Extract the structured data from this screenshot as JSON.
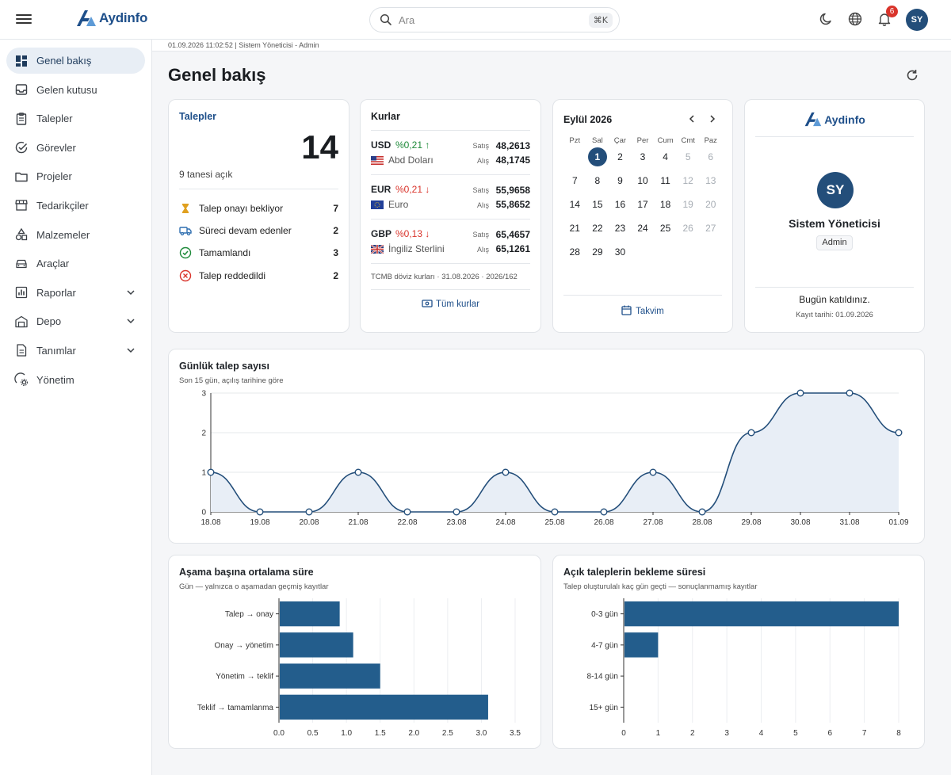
{
  "brand": {
    "name": "Aydinfo",
    "color": "#1e4f8a"
  },
  "search": {
    "placeholder": "Ara",
    "shortcut": "⌘K"
  },
  "header": {
    "notification_count": "6",
    "avatar_initials": "SY"
  },
  "sidebar": {
    "items": [
      {
        "label": "Genel bakış",
        "icon": "dashboard-icon",
        "active": true
      },
      {
        "label": "Gelen kutusu",
        "icon": "inbox-icon"
      },
      {
        "label": "Talepler",
        "icon": "clipboard-icon"
      },
      {
        "label": "Görevler",
        "icon": "check-circle-icon"
      },
      {
        "label": "Projeler",
        "icon": "folder-icon"
      },
      {
        "label": "Tedarikçiler",
        "icon": "store-icon"
      },
      {
        "label": "Malzemeler",
        "icon": "shapes-icon"
      },
      {
        "label": "Araçlar",
        "icon": "car-icon"
      },
      {
        "label": "Raporlar",
        "icon": "bar-chart-icon",
        "expandable": true
      },
      {
        "label": "Depo",
        "icon": "warehouse-icon",
        "expandable": true
      },
      {
        "label": "Tanımlar",
        "icon": "document-icon",
        "expandable": true
      },
      {
        "label": "Yönetim",
        "icon": "admin-gear-icon"
      }
    ]
  },
  "infobar": {
    "text": "01.09.2026 11:02:52 | Sistem Yöneticisi - Admin"
  },
  "page": {
    "title": "Genel bakış"
  },
  "talepler": {
    "title": "Talepler",
    "total": "14",
    "open_text": "9 tanesi açık",
    "statuses": [
      {
        "label": "Talep onayı bekliyor",
        "count": "7",
        "icon": "hourglass-icon",
        "color": "#e0a020"
      },
      {
        "label": "Süreci devam edenler",
        "count": "2",
        "icon": "truck-icon",
        "color": "#2f6fb0"
      },
      {
        "label": "Tamamlandı",
        "count": "3",
        "icon": "check-circle-icon",
        "color": "#1e8a3a"
      },
      {
        "label": "Talep reddedildi",
        "count": "2",
        "icon": "x-circle-icon",
        "color": "#d9342b"
      }
    ]
  },
  "kurlar": {
    "title": "Kurlar",
    "sell_label": "Satış",
    "buy_label": "Alış",
    "rates": [
      {
        "code": "USD",
        "change": "%0,21",
        "direction": "up",
        "name": "Abd Doları",
        "flag": "us-flag-icon",
        "sell": "48,2613",
        "buy": "48,1745"
      },
      {
        "code": "EUR",
        "change": "%0,21",
        "direction": "down",
        "name": "Euro",
        "flag": "eu-flag-icon",
        "sell": "55,9658",
        "buy": "55,8652"
      },
      {
        "code": "GBP",
        "change": "%0,13",
        "direction": "down",
        "name": "İngiliz Sterlini",
        "flag": "uk-flag-icon",
        "sell": "65,4657",
        "buy": "65,1261"
      }
    ],
    "source": "TCMB döviz kurları · 31.08.2026 · 2026/162",
    "link": "Tüm kurlar"
  },
  "calendar": {
    "title": "Eylül 2026",
    "weekdays": [
      "Pzt",
      "Sal",
      "Çar",
      "Per",
      "Cum",
      "Cmt",
      "Paz"
    ],
    "weeks": [
      [
        "",
        "1",
        "2",
        "3",
        "4",
        "5",
        "6"
      ],
      [
        "7",
        "8",
        "9",
        "10",
        "11",
        "12",
        "13"
      ],
      [
        "14",
        "15",
        "16",
        "17",
        "18",
        "19",
        "20"
      ],
      [
        "21",
        "22",
        "23",
        "24",
        "25",
        "26",
        "27"
      ],
      [
        "28",
        "29",
        "30",
        "",
        "",
        "",
        ""
      ]
    ],
    "today": "1",
    "link": "Takvim"
  },
  "profile": {
    "initials": "SY",
    "name": "Sistem Yöneticisi",
    "role": "Admin",
    "joined_text": "Bugün katıldınız.",
    "registered": "Kayıt tarihi: 01.09.2026"
  },
  "chart_daily": {
    "title": "Günlük talep sayısı",
    "subtitle": "Son 15 gün, açılış tarihine göre"
  },
  "chart_stage": {
    "title": "Aşama başına ortalama süre",
    "subtitle": "Gün — yalnızca o aşamadan geçmiş kayıtlar"
  },
  "chart_wait": {
    "title": "Açık taleplerin bekleme süresi",
    "subtitle": "Talep oluşturulalı kaç gün geçti — sonuçlanmamış kayıtlar"
  },
  "chart_data": [
    {
      "type": "area",
      "title": "Günlük talep sayısı",
      "x": [
        "18.08",
        "19.08",
        "20.08",
        "21.08",
        "22.08",
        "23.08",
        "24.08",
        "25.08",
        "26.08",
        "27.08",
        "28.08",
        "29.08",
        "30.08",
        "31.08",
        "01.09"
      ],
      "values": [
        1,
        0,
        0,
        1,
        0,
        0,
        1,
        0,
        0,
        1,
        0,
        2,
        3,
        3,
        2
      ],
      "yticks": [
        0,
        1,
        2,
        3
      ],
      "ylim": [
        0,
        3
      ],
      "color": "#234e7a",
      "fill": "#e8eef6"
    },
    {
      "type": "bar",
      "orientation": "horizontal",
      "title": "Aşama başına ortalama süre",
      "categories": [
        "Talep → onay",
        "Onay → yönetim",
        "Yönetim → teklif",
        "Teklif → tamamlanma"
      ],
      "values": [
        0.9,
        1.1,
        1.5,
        3.1
      ],
      "xticks": [
        "0.0",
        "0.5",
        "1.0",
        "1.5",
        "2.0",
        "2.5",
        "3.0",
        "3.5"
      ],
      "xlim": [
        0,
        3.5
      ],
      "color": "#235d8c"
    },
    {
      "type": "bar",
      "orientation": "horizontal",
      "title": "Açık taleplerin bekleme süresi",
      "categories": [
        "0-3 gün",
        "4-7 gün",
        "8-14 gün",
        "15+ gün"
      ],
      "values": [
        8,
        1,
        0,
        0
      ],
      "xticks": [
        "0",
        "1",
        "2",
        "3",
        "4",
        "5",
        "6",
        "7",
        "8"
      ],
      "xlim": [
        0,
        8
      ],
      "color": "#235d8c"
    }
  ]
}
